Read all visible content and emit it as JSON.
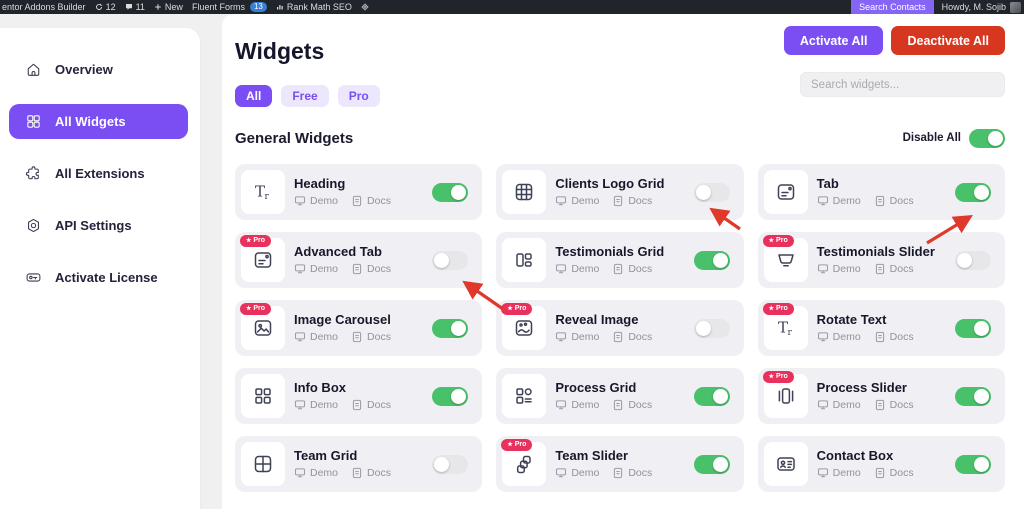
{
  "admin_bar": {
    "site": "entor Addons Builder",
    "updates_count": "12",
    "comments_count": "11",
    "new_label": "New",
    "fluent_forms": "Fluent Forms",
    "fluent_forms_badge": "13",
    "rank_math": "Rank Math SEO",
    "search_contacts": "Search Contacts",
    "howdy": "Howdy, M. Sojib"
  },
  "sidebar": {
    "items": [
      {
        "label": "Overview",
        "icon": "home-icon",
        "active": false
      },
      {
        "label": "All Widgets",
        "icon": "widgets-grid-icon",
        "active": true
      },
      {
        "label": "All Extensions",
        "icon": "puzzle-icon",
        "active": false
      },
      {
        "label": "API Settings",
        "icon": "gear-icon",
        "active": false
      },
      {
        "label": "Activate License",
        "icon": "key-icon",
        "active": false
      }
    ]
  },
  "header": {
    "title": "Widgets",
    "activate_all": "Activate All",
    "deactivate_all": "Deactivate All",
    "search_placeholder": "Search widgets...",
    "filters": [
      {
        "label": "All",
        "active": true
      },
      {
        "label": "Free",
        "active": false
      },
      {
        "label": "Pro",
        "active": false
      }
    ]
  },
  "section": {
    "title": "General Widgets",
    "disable_all": "Disable All",
    "disable_all_on": true
  },
  "card_labels": {
    "demo": "Demo",
    "docs": "Docs",
    "pro_badge": "Pro"
  },
  "widgets": [
    {
      "name": "Heading",
      "icon": "heading-icon",
      "pro": false,
      "enabled": true
    },
    {
      "name": "Clients Logo Grid",
      "icon": "logo-grid-icon",
      "pro": false,
      "enabled": false
    },
    {
      "name": "Tab",
      "icon": "tab-icon",
      "pro": false,
      "enabled": true
    },
    {
      "name": "Advanced Tab",
      "icon": "tab-icon",
      "pro": true,
      "enabled": false
    },
    {
      "name": "Testimonials Grid",
      "icon": "testimonials-grid-icon",
      "pro": false,
      "enabled": true
    },
    {
      "name": "Testimonials Slider",
      "icon": "testimonial-slider-icon",
      "pro": true,
      "enabled": false
    },
    {
      "name": "Image Carousel",
      "icon": "image-icon",
      "pro": true,
      "enabled": true
    },
    {
      "name": "Reveal Image",
      "icon": "reveal-image-icon",
      "pro": true,
      "enabled": false
    },
    {
      "name": "Rotate Text",
      "icon": "heading-icon",
      "pro": true,
      "enabled": true
    },
    {
      "name": "Info Box",
      "icon": "infobox-icon",
      "pro": false,
      "enabled": true
    },
    {
      "name": "Process Grid",
      "icon": "process-grid-icon",
      "pro": false,
      "enabled": true
    },
    {
      "name": "Process Slider",
      "icon": "process-slider-icon",
      "pro": true,
      "enabled": true
    },
    {
      "name": "Team Grid",
      "icon": "team-grid-icon",
      "pro": false,
      "enabled": false
    },
    {
      "name": "Team Slider",
      "icon": "team-slider-icon",
      "pro": true,
      "enabled": true
    },
    {
      "name": "Contact Box",
      "icon": "contact-icon",
      "pro": false,
      "enabled": true
    }
  ],
  "colors": {
    "accent_purple": "#7a4ef2",
    "adminbar_purple": "#8565f6",
    "danger_red": "#d8371f",
    "toggle_green": "#49c16a",
    "pro_pink": "#e8325d",
    "arrow_red": "#e0392b"
  }
}
